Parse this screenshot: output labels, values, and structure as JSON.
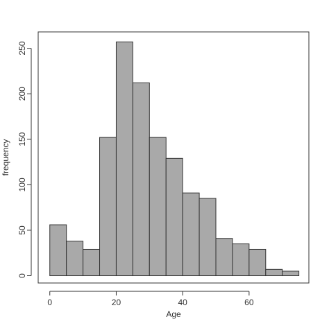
{
  "chart_data": {
    "type": "bar",
    "subtype": "histogram",
    "xlabel": "Age",
    "ylabel": "frequency",
    "bin_width": 5,
    "bin_edges": [
      0,
      5,
      10,
      15,
      20,
      25,
      30,
      35,
      40,
      45,
      50,
      55,
      60,
      65,
      70,
      75
    ],
    "values": [
      56,
      38,
      29,
      152,
      257,
      212,
      152,
      129,
      91,
      85,
      41,
      35,
      29,
      7,
      5
    ],
    "xlim": [
      -3.5,
      78
    ],
    "ylim": [
      -8,
      268
    ],
    "x_ticks": [
      0,
      20,
      40,
      60
    ],
    "y_ticks": [
      0,
      50,
      100,
      150,
      200,
      250
    ],
    "bar_color": "#a9a9a9",
    "edge_color": "#333333",
    "grid": false,
    "legend": "none"
  }
}
